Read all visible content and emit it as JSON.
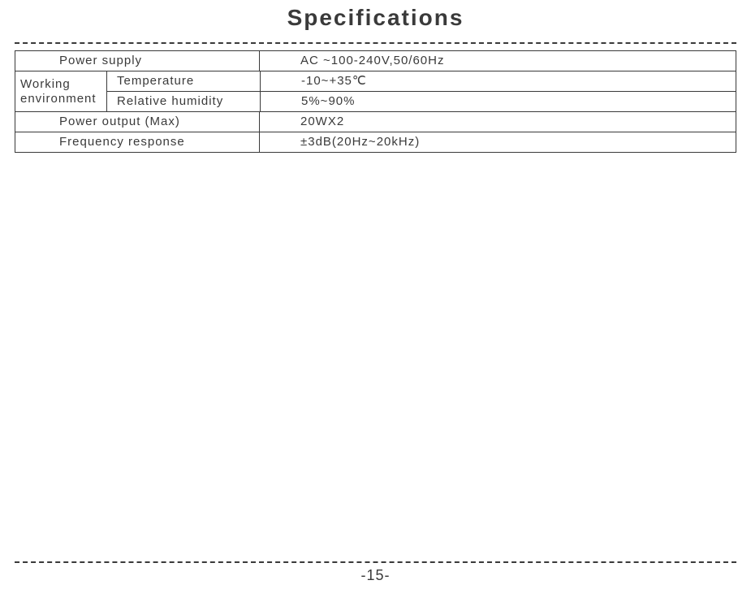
{
  "title": "Specifications",
  "page_number": "-15-",
  "colors": {
    "text": "#3a3a3a",
    "border": "#3a3a3a",
    "background": "#ffffff"
  },
  "table": {
    "power_supply": {
      "label": "Power supply",
      "value": "AC ~100-240V,50/60Hz"
    },
    "working_env": {
      "label_line1": "Working",
      "label_line2": "environment",
      "temperature": {
        "label": "Temperature",
        "value": "-10~+35℃"
      },
      "humidity": {
        "label": "Relative humidity",
        "value": "5%~90%"
      }
    },
    "power_output": {
      "label": "Power output (Max)",
      "value": "20WX2"
    },
    "freq_response": {
      "label": "Frequency response",
      "value": "±3dB(20Hz~20kHz)"
    }
  }
}
